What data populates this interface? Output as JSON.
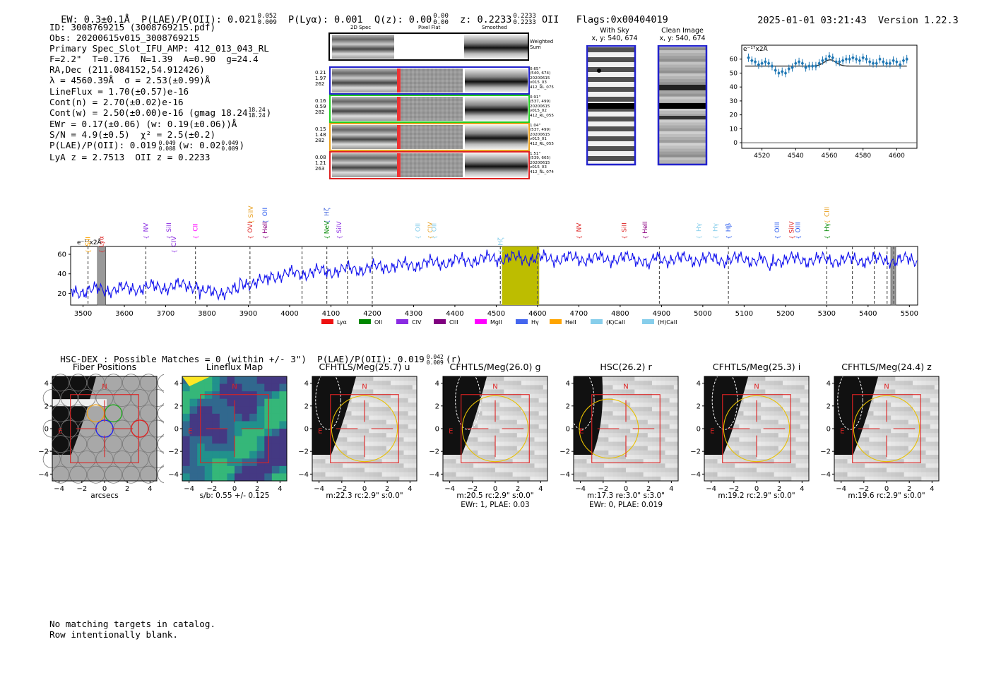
{
  "header": {
    "ew": "EW: 0.3±0.1Å",
    "plae": "P(LAE)/P(OII): 0.021",
    "plae_sup": "0.052",
    "plae_sub": "0.009",
    "plya": "P(Lyα): 0.001",
    "qz": "Q(z): 0.00",
    "qz_sup": "0.00",
    "qz_sub": "0.00",
    "z": "z: 0.2233",
    "z_sup": "0.2233",
    "z_sub": "0.2233",
    "z_line": "OII",
    "flags": "Flags:0x00404019",
    "timestamp": "2025-01-01 03:21:43",
    "version": "Version 1.22.3"
  },
  "info": {
    "id": "ID: 3008769215 (3008769215.pdf)",
    "obs": "Obs: 20200615v015_3008769215",
    "primary": "Primary Spec_Slot_IFU_AMP: 412_013_043_RL",
    "params": "F=2.2\"  T=0.176  N=1.39  A=0.90  g=24.4",
    "radec": "RA,Dec (211.084152,54.912426)",
    "lambda": "λ = 4560.39Å  σ = 2.53(±0.99)Å",
    "lineflux": "LineFlux = 1.70(±0.57)e-16",
    "contn": "Cont(n) = 2.70(±0.02)e-16",
    "contw": "Cont(w) = 2.50(±0.00)e-16 (gmag 18.24",
    "contw_sup": "18.24",
    "contw_sub": "18.24",
    "contw_close": ")",
    "ewr": "EWr = 0.17(±0.06) (w: 0.19(±0.06))Å",
    "sn": "S/N = 4.9(±0.5)  χ² = 2.5(±0.2)",
    "plae": "P(LAE)/P(OII): 0.019",
    "plae_sup": "0.049",
    "plae_sub": "0.008",
    "plae_w": "(w: 0.02",
    "plae_w_sup": "0.049",
    "plae_w_sub": "0.009",
    "plae_close": ")",
    "lyaz": "LyA z = 2.7513  OII z = 0.2233"
  },
  "cutouts": {
    "col_2d": "2D Spec",
    "col_flat": "Pixel Flat",
    "col_smooth": "Smoothed",
    "weighted": "Weighted Sum",
    "rows": [
      {
        "left": [
          "0.21",
          "1.97",
          "262"
        ],
        "right": [
          "0.65\"",
          "(540, 674)",
          "20200615",
          "v015_03",
          "412_RL_075"
        ],
        "color": "#2222cc"
      },
      {
        "left": [
          "0.16",
          "0.59",
          "282"
        ],
        "right": [
          "0.91\"",
          "(537, 499)",
          "20200615",
          "v015_02",
          "412_RL_055"
        ],
        "color": "#22cc22"
      },
      {
        "left": [
          "0.15",
          "1.48",
          "282"
        ],
        "right": [
          "1.04\"",
          "(537, 499)",
          "20200615",
          "v015_01",
          "412_RL_055"
        ],
        "color": "#e8a020"
      },
      {
        "left": [
          "0.08",
          "1.21",
          "263"
        ],
        "right": [
          "1.51\"",
          "(539, 665)",
          "20200615",
          "v015_03",
          "412_RL_074"
        ],
        "color": "#dd2222"
      }
    ]
  },
  "sky": {
    "with_title": "With Sky",
    "with_coord": "x, y: 540, 674",
    "clean_title": "Clean Image",
    "clean_coord": "x, y: 540, 674"
  },
  "zoom_chart": {
    "type": "line",
    "unit_label": "e⁻¹⁷x2Å",
    "xlim": [
      4508,
      4612
    ],
    "ylim": [
      -4,
      70
    ],
    "xticks": [
      "4520",
      "4540",
      "4560",
      "4580",
      "4600"
    ],
    "yticks": [
      "0",
      "10",
      "20",
      "30",
      "40",
      "50",
      "60"
    ],
    "points_x": [
      4512,
      4514,
      4516,
      4518,
      4520,
      4522,
      4524,
      4526,
      4528,
      4530,
      4532,
      4534,
      4536,
      4538,
      4540,
      4542,
      4544,
      4546,
      4548,
      4550,
      4552,
      4554,
      4556,
      4558,
      4560,
      4562,
      4564,
      4566,
      4568,
      4570,
      4572,
      4574,
      4576,
      4578,
      4580,
      4582,
      4584,
      4586,
      4588,
      4590,
      4592,
      4594,
      4596,
      4598,
      4600,
      4602,
      4604,
      4606
    ],
    "points_y": [
      61,
      59,
      58,
      56,
      57,
      58,
      57,
      55,
      52,
      50,
      51,
      50,
      53,
      54,
      57,
      58,
      57,
      54,
      55,
      55,
      55,
      57,
      59,
      60,
      62,
      61,
      58,
      58,
      59,
      60,
      60,
      61,
      60,
      59,
      61,
      60,
      58,
      57,
      57,
      60,
      58,
      57,
      57,
      59,
      58,
      56,
      59,
      60
    ],
    "model_y": 55,
    "model_peak": 59.5
  },
  "spectrum": {
    "type": "line",
    "unit_label": "e⁻¹⁷x2Å",
    "xlim": [
      3470,
      5520
    ],
    "ylim": [
      8,
      68
    ],
    "xticks": [
      "3500",
      "3600",
      "3700",
      "3800",
      "3900",
      "4000",
      "4100",
      "4200",
      "4300",
      "4400",
      "4500",
      "4600",
      "4700",
      "4800",
      "4900",
      "5000",
      "5100",
      "5200",
      "5300",
      "5400",
      "5500"
    ],
    "yticks": [
      "20",
      "40",
      "60"
    ],
    "highlight_range": [
      4514,
      4604
    ],
    "gray_bands": [
      [
        3535,
        3555
      ],
      [
        5455,
        5467
      ]
    ],
    "dashed_lines": [
      3512,
      3652,
      3772,
      3904,
      4030,
      4090,
      4140,
      4200,
      4510,
      4600,
      4895,
      5062,
      5300,
      5362,
      5415,
      5446,
      5462
    ],
    "lines": [
      {
        "name": "SiII",
        "x": 3512,
        "color": "#ffa500",
        "row": 2
      },
      {
        "name": "Lyα",
        "x": 3544,
        "color": "#dd2222",
        "row": 2
      },
      {
        "name": "NV",
        "x": 3652,
        "color": "#8a2be2",
        "row": 1
      },
      {
        "name": "SiII",
        "x": 3708,
        "color": "#8a2be2",
        "row": 1
      },
      {
        "name": "CIV",
        "x": 3720,
        "color": "#8a2be2",
        "row": 2
      },
      {
        "name": "CII",
        "x": 3772,
        "color": "#ff00ff",
        "row": 1
      },
      {
        "name": "SiIV",
        "x": 3906,
        "color": "#e8a020",
        "row": 0
      },
      {
        "name": "OVI",
        "x": 3904,
        "color": "#dd2222",
        "row": 1
      },
      {
        "name": "OII",
        "x": 3940,
        "color": "#2255ee",
        "row": 0
      },
      {
        "name": "HeII",
        "x": 3940,
        "color": "#8b0080",
        "row": 1
      },
      {
        "name": "Hζ",
        "x": 4090,
        "color": "#4466dd",
        "row": 0
      },
      {
        "name": "NeV",
        "x": 4090,
        "color": "#008800",
        "row": 1
      },
      {
        "name": "SiIV",
        "x": 4120,
        "color": "#8a2be2",
        "row": 1
      },
      {
        "name": "OII",
        "x": 4310,
        "color": "#87ceeb",
        "row": 1
      },
      {
        "name": "CIV",
        "x": 4340,
        "color": "#e8a020",
        "row": 1
      },
      {
        "name": "OII",
        "x": 4350,
        "color": "#87ceeb",
        "row": 1
      },
      {
        "name": "Hζ",
        "x": 4510,
        "color": "#87ceeb",
        "row": 2
      },
      {
        "name": "NV",
        "x": 4700,
        "color": "#dd2222",
        "row": 1
      },
      {
        "name": "SiII",
        "x": 4810,
        "color": "#dd2222",
        "row": 1
      },
      {
        "name": "HeII",
        "x": 4860,
        "color": "#8b0080",
        "row": 1
      },
      {
        "name": "Hγ",
        "x": 4990,
        "color": "#87ceeb",
        "row": 1
      },
      {
        "name": "Hγ",
        "x": 5030,
        "color": "#87ceeb",
        "row": 1
      },
      {
        "name": "Hβ",
        "x": 5062,
        "color": "#2255ee",
        "row": 1
      },
      {
        "name": "OIII",
        "x": 5180,
        "color": "#2255ee",
        "row": 1
      },
      {
        "name": "SiIV",
        "x": 5215,
        "color": "#dd2222",
        "row": 1
      },
      {
        "name": "OIII",
        "x": 5230,
        "color": "#2255ee",
        "row": 1
      },
      {
        "name": "CIII",
        "x": 5300,
        "color": "#e8a020",
        "row": 0
      },
      {
        "name": "Hγ",
        "x": 5300,
        "color": "#008800",
        "row": 1
      }
    ],
    "legend": [
      {
        "name": "Lyα",
        "color": "#ee1111"
      },
      {
        "name": "OII",
        "color": "#008800"
      },
      {
        "name": "CIV",
        "color": "#8a2be2"
      },
      {
        "name": "CIII",
        "color": "#800080"
      },
      {
        "name": "MgII",
        "color": "#ff00ff"
      },
      {
        "name": "Hγ",
        "color": "#4466ee"
      },
      {
        "name": "HeII",
        "color": "#ffa500"
      },
      {
        "name": "(K)CaII",
        "color": "#87ceeb"
      },
      {
        "name": "(H)CaII",
        "color": "#87ceeb"
      }
    ]
  },
  "hsc": {
    "title": "HSC-DEX : Possible Matches = 0 (within +/- 3\")  P(LAE)/P(OII): 0.019",
    "sup": "0.042",
    "sub": "0.009",
    "band": "(r)"
  },
  "panels": [
    {
      "title": "Fiber Positions",
      "cap1": "arcsecs",
      "cap2": ""
    },
    {
      "title": "Lineflux Map",
      "cap1": "s/b: 0.55 +/- 0.125",
      "cap2": ""
    },
    {
      "title": "CFHTLS/Meg(25.7) u",
      "cap1": "m:22.3 rc:2.9\"  s:0.0\"",
      "cap2": ""
    },
    {
      "title": "CFHTLS/Meg(26.0) g",
      "cap1": "m:20.5 rc:2.9\"  s:0.0\"",
      "cap2": "EWr: 1, PLAE: 0.03"
    },
    {
      "title": "HSC(26.2) r",
      "cap1": "m:17.3  re:3.0\"  s:3.0\"",
      "cap2": "EWr: 0, PLAE: 0.019"
    },
    {
      "title": "CFHTLS/Meg(25.3) i",
      "cap1": "m:19.2 rc:2.9\"  s:0.0\"",
      "cap2": ""
    },
    {
      "title": "CFHTLS/Meg(24.4) z",
      "cap1": "m:19.6 rc:2.9\"  s:0.0\"",
      "cap2": ""
    }
  ],
  "panel_axis": {
    "ticks": [
      "−4",
      "−2",
      "0",
      "2",
      "4"
    ],
    "north": "N",
    "east": "E"
  },
  "footer": {
    "line1": "No matching targets in catalog.",
    "line2": "Row intentionally blank."
  }
}
